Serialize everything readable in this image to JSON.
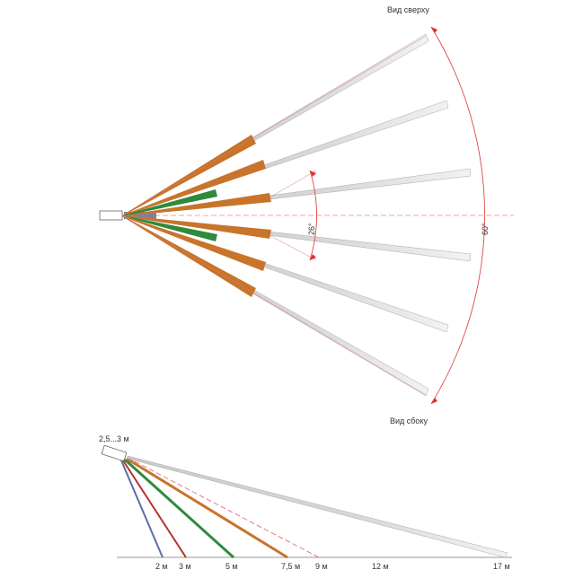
{
  "top_view": {
    "title": "Вид сверху",
    "wide_angle": "60°",
    "narrow_angle": "26°"
  },
  "side_view": {
    "title": "Вид сбоку",
    "height_label": "2,5...3 м",
    "distances": [
      "2 м",
      "3 м",
      "5 м",
      "7,5 м",
      "9 м",
      "12 м",
      "17 м"
    ]
  },
  "colors": {
    "orange": "#c8742a",
    "green": "#2f8a3c",
    "red": "#b5312c",
    "blue": "#5a6fa0",
    "gray": "#b8b8b8",
    "dash_red": "#e06060"
  }
}
